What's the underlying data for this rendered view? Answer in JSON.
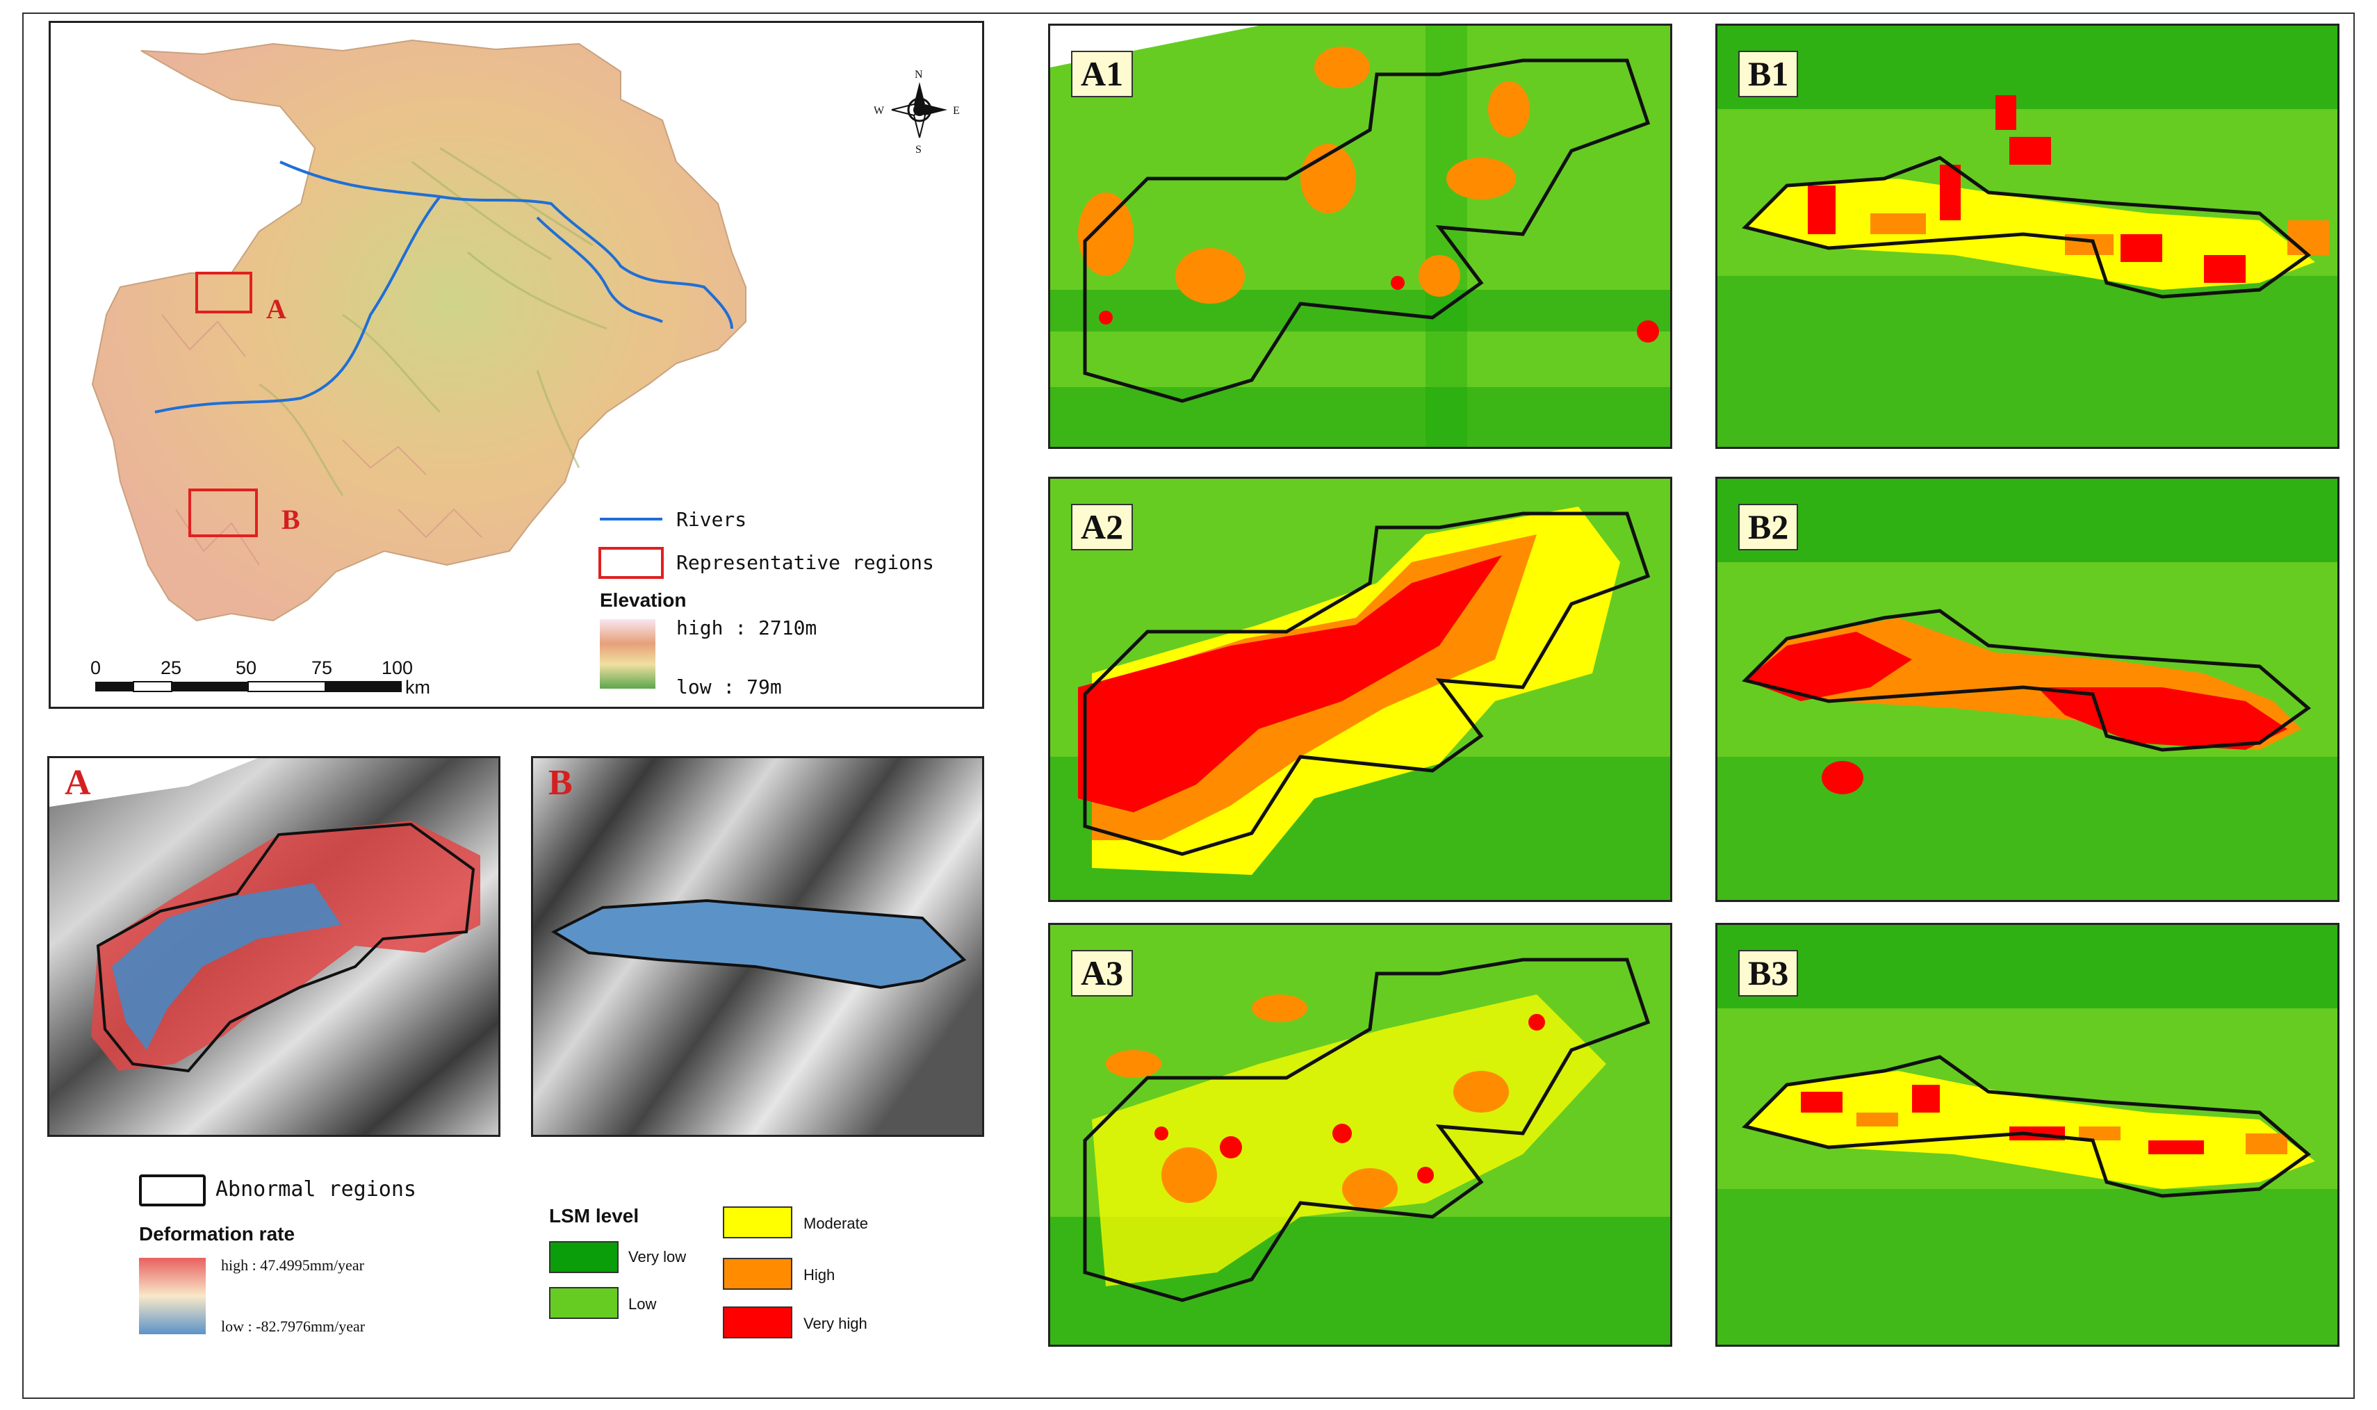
{
  "overview_map": {
    "region_labels": [
      "A",
      "B"
    ],
    "compass": {
      "n": "N",
      "s": "S",
      "e": "E",
      "w": "W"
    },
    "scale_ticks": [
      "0",
      "25",
      "50",
      "75",
      "100"
    ],
    "scale_unit": "km",
    "legend": {
      "rivers_label": "Rivers",
      "regions_label": "Representative regions",
      "elevation_title": "Elevation",
      "elevation_high": "high : 2710m",
      "elevation_low": "low : 79m"
    },
    "colors": {
      "river": "#1f6fd6",
      "region_box": "#e02020"
    }
  },
  "deformation_maps": {
    "labels": [
      "A",
      "B"
    ],
    "legend": {
      "abnormal_label": "Abnormal regions",
      "title": "Deformation rate",
      "high": "high : 47.4995mm/year",
      "low": "low : -82.7976mm/year"
    }
  },
  "lsm_legend": {
    "title": "LSM level",
    "items": [
      {
        "label": "Very low",
        "color": "#0a9e0a"
      },
      {
        "label": "Low",
        "color": "#66cc22"
      },
      {
        "label": "Moderate",
        "color": "#ffff00"
      },
      {
        "label": "High",
        "color": "#ff8c00"
      },
      {
        "label": "Very high",
        "color": "#ff0000"
      }
    ]
  },
  "lsm_panels": [
    "A1",
    "A2",
    "A3",
    "B1",
    "B2",
    "B3"
  ]
}
